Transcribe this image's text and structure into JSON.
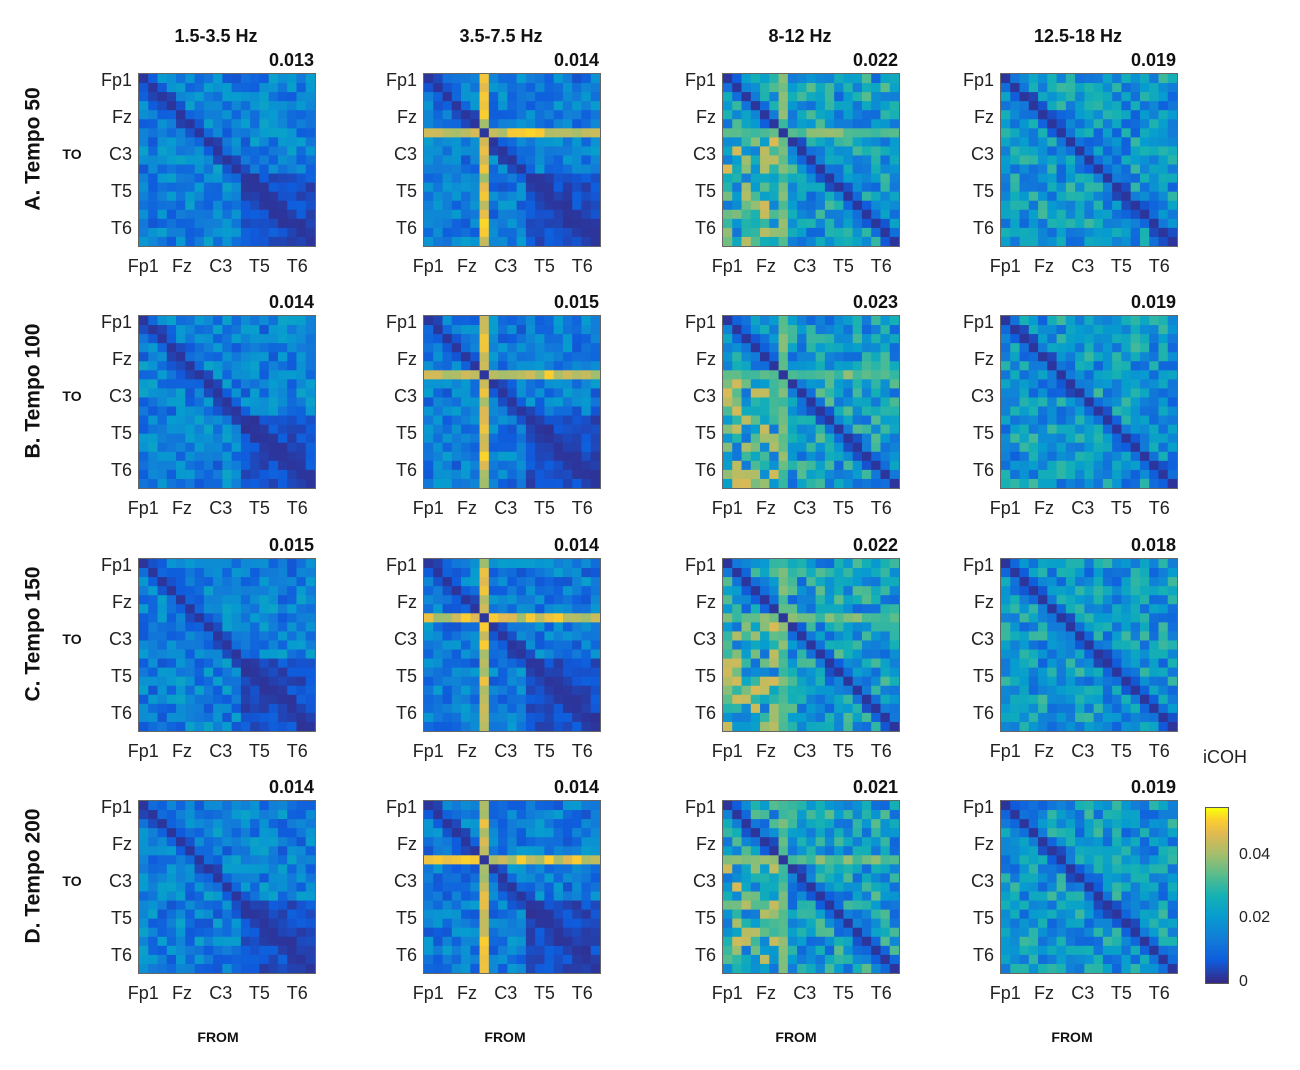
{
  "chart_data": {
    "type": "heatmap",
    "description_measure": "iCOH",
    "bands": [
      "1.5-3.5 Hz",
      "3.5-7.5 Hz",
      "8-12 Hz",
      "12.5-18 Hz"
    ],
    "conditions": [
      "A. Tempo 50",
      "B. Tempo 100",
      "C. Tempo 150",
      "D. Tempo 200"
    ],
    "y_axis_label": "TO",
    "x_axis_label": "FROM",
    "y_tick_labels": [
      "Fp1",
      "Fz",
      "C3",
      "T5",
      "T6"
    ],
    "x_tick_labels": [
      "Fp1",
      "Fz",
      "C3",
      "T5",
      "T6"
    ],
    "matrix_size": 19,
    "mean_values": [
      [
        "0.013",
        "0.014",
        "0.022",
        "0.019"
      ],
      [
        "0.014",
        "0.015",
        "0.023",
        "0.019"
      ],
      [
        "0.015",
        "0.014",
        "0.022",
        "0.018"
      ],
      [
        "0.014",
        "0.014",
        "0.021",
        "0.019"
      ]
    ],
    "colorbar": {
      "title": "iCOH",
      "ticks": [
        "0",
        "0.02",
        "0.04"
      ],
      "range": [
        0,
        0.055
      ],
      "colormap": "parula"
    },
    "pattern_notes": {
      "zero_diagonal": true,
      "band_base": [
        0.016,
        0.015,
        0.024,
        0.022
      ],
      "hub_channel_index": 6,
      "hub_strength": [
        0.0,
        0.05,
        0.038,
        0.004
      ]
    }
  }
}
